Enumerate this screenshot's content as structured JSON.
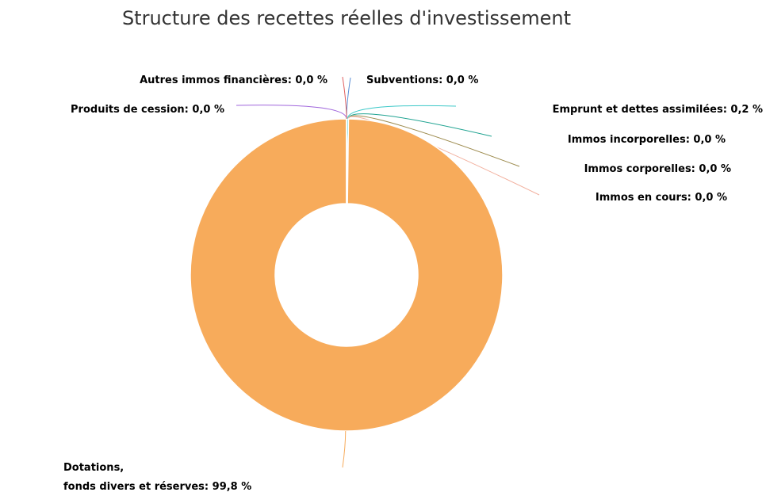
{
  "chart_data": {
    "type": "donut",
    "title": "Structure des recettes réelles d'investissement",
    "values": [
      0,
      0.2,
      0,
      0,
      0,
      99.8,
      0,
      0
    ],
    "value_labels": [
      [
        "Subventions: 0,0 %"
      ],
      [
        "Emprunt et dettes assimilées: 0,2 %"
      ],
      [
        "Immos incorporelles: 0,0 %"
      ],
      [
        "Immos corporelles: 0,0 %"
      ],
      [
        "Immos en cours: 0,0 %"
      ],
      [
        "Dotations,",
        "fonds divers et réserves: 99,8 %"
      ],
      [
        "Produits de cession: 0,0 %"
      ],
      [
        "Autres immos financières: 0,0 %"
      ]
    ],
    "colors": [
      "#5b8fd6",
      "#3cc8c8",
      "#1fa391",
      "#9c8a4c",
      "#f2b09e",
      "#f7ab5b",
      "#a066dc",
      "#e06060"
    ]
  }
}
